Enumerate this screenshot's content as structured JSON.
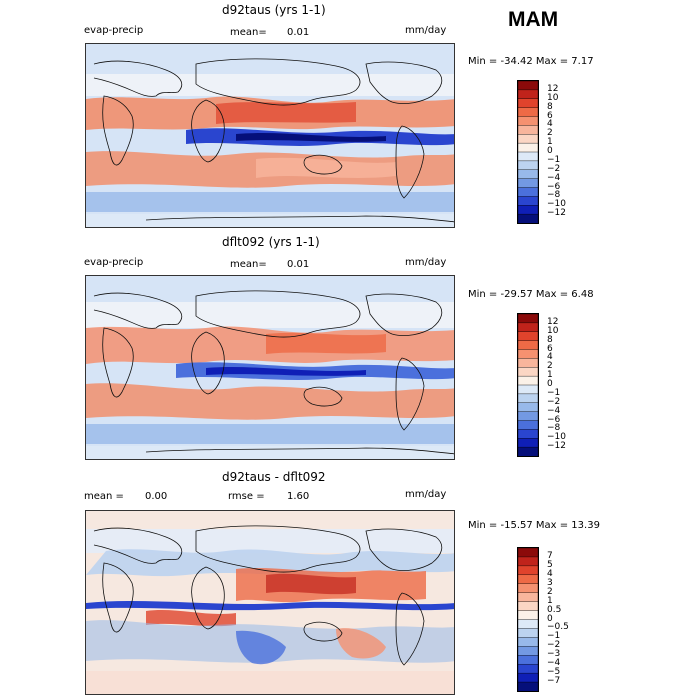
{
  "season": "MAM",
  "panels": [
    {
      "title": "d92taus (yrs 1-1)",
      "left_label": "evap-precip",
      "mean_label": "mean=",
      "mean_value": "0.01",
      "units": "mm/day",
      "minmax": "Min = -34.42 Max =   7.17",
      "colorbar_labels": [
        "12",
        "10",
        "8",
        "6",
        "4",
        "2",
        "1",
        "0",
        "−1",
        "−2",
        "−4",
        "−6",
        "−8",
        "−10",
        "−12"
      ],
      "colorbar_colors": [
        "#8b0a0a",
        "#c0231b",
        "#e0432c",
        "#ee6a46",
        "#f59170",
        "#f8b59c",
        "#fbd6c4",
        "#fbf1e8",
        "#dde9f7",
        "#bcd3f0",
        "#98b9ea",
        "#7399e3",
        "#4b70dc",
        "#2a45cf",
        "#0f1fb6",
        "#050f7a"
      ]
    },
    {
      "title": "dflt092 (yrs 1-1)",
      "left_label": "evap-precip",
      "mean_label": "mean=",
      "mean_value": "0.01",
      "units": "mm/day",
      "minmax": "Min = -29.57 Max =   6.48",
      "colorbar_labels": [
        "12",
        "10",
        "8",
        "6",
        "4",
        "2",
        "1",
        "0",
        "−1",
        "−2",
        "−4",
        "−6",
        "−8",
        "−10",
        "−12"
      ],
      "colorbar_colors": [
        "#8b0a0a",
        "#c0231b",
        "#e0432c",
        "#ee6a46",
        "#f59170",
        "#f8b59c",
        "#fbd6c4",
        "#fbf1e8",
        "#dde9f7",
        "#bcd3f0",
        "#98b9ea",
        "#7399e3",
        "#4b70dc",
        "#2a45cf",
        "#0f1fb6",
        "#050f7a"
      ]
    },
    {
      "title": "d92taus - dflt092",
      "mean_label": "mean =",
      "mean_value": "0.00",
      "rmse_label": "rmse =",
      "rmse_value": "1.60",
      "units": "mm/day",
      "minmax": "Min = -15.57 Max =  13.39",
      "colorbar_labels": [
        "7",
        "5",
        "4",
        "3",
        "2",
        "1",
        "0.5",
        "0",
        "−0.5",
        "−1",
        "−2",
        "−3",
        "−4",
        "−5",
        "−7"
      ],
      "colorbar_colors": [
        "#8b0a0a",
        "#c0231b",
        "#e0432c",
        "#ee6a46",
        "#f59170",
        "#f8b59c",
        "#fbd6c4",
        "#fbf1e8",
        "#dde9f7",
        "#bcd3f0",
        "#98b9ea",
        "#7399e3",
        "#4b70dc",
        "#2a45cf",
        "#0f1fb6",
        "#050f7a"
      ]
    }
  ]
}
